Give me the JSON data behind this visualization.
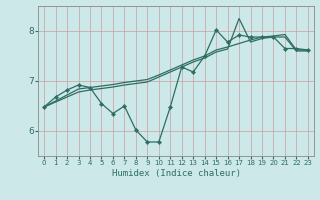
{
  "xlabel": "Humidex (Indice chaleur)",
  "bg_color": "#cce8e8",
  "grid_color": "#b0d0d0",
  "line_color": "#2e6e62",
  "xlim": [
    -0.5,
    23.5
  ],
  "ylim": [
    5.5,
    8.5
  ],
  "yticks": [
    6,
    7,
    8
  ],
  "xticks": [
    0,
    1,
    2,
    3,
    4,
    5,
    6,
    7,
    8,
    9,
    10,
    11,
    12,
    13,
    14,
    15,
    16,
    17,
    18,
    19,
    20,
    21,
    22,
    23
  ],
  "line1_x": [
    0,
    1,
    2,
    3,
    4,
    5,
    6,
    7,
    8,
    9,
    10,
    11,
    12,
    13,
    14,
    15,
    16,
    17,
    18,
    19,
    20,
    21,
    22,
    23
  ],
  "line1_y": [
    6.48,
    6.68,
    6.82,
    6.92,
    6.87,
    6.55,
    6.35,
    6.5,
    6.02,
    5.78,
    5.78,
    6.48,
    7.28,
    7.18,
    7.5,
    8.02,
    7.78,
    7.92,
    7.88,
    7.88,
    7.88,
    7.65,
    7.65,
    7.62
  ],
  "line2_x": [
    0,
    1,
    2,
    3,
    4,
    5,
    6,
    7,
    8,
    9,
    10,
    11,
    12,
    13,
    14,
    15,
    16,
    17,
    18,
    19,
    20,
    21,
    22,
    23
  ],
  "line2_y": [
    6.48,
    6.6,
    6.72,
    6.84,
    6.87,
    6.9,
    6.93,
    6.97,
    7.0,
    7.03,
    7.12,
    7.22,
    7.32,
    7.42,
    7.5,
    7.62,
    7.68,
    7.75,
    7.82,
    7.88,
    7.9,
    7.93,
    7.62,
    7.62
  ],
  "line3_x": [
    0,
    1,
    2,
    3,
    4,
    5,
    6,
    7,
    8,
    9,
    10,
    11,
    12,
    13,
    14,
    15,
    16,
    17,
    18,
    19,
    20,
    21,
    22,
    23
  ],
  "line3_y": [
    6.48,
    6.58,
    6.68,
    6.78,
    6.82,
    6.85,
    6.88,
    6.92,
    6.95,
    6.98,
    7.08,
    7.18,
    7.28,
    7.38,
    7.46,
    7.58,
    7.64,
    8.25,
    7.78,
    7.85,
    7.88,
    7.88,
    7.6,
    7.6
  ]
}
